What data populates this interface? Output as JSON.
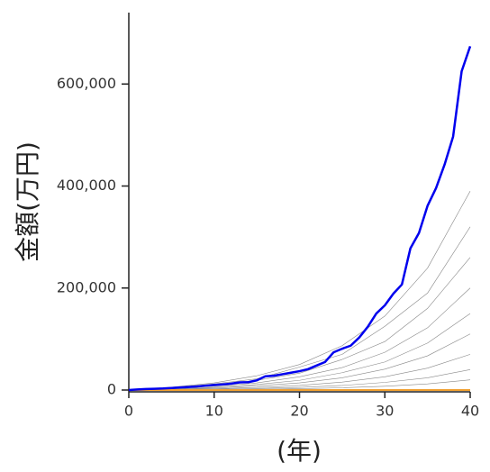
{
  "chart_data": {
    "type": "line",
    "y_label": "金額(万円)",
    "x_label": "(年)",
    "x": [
      0,
      1,
      2,
      3,
      4,
      5,
      6,
      7,
      8,
      9,
      10,
      11,
      12,
      13,
      14,
      15,
      16,
      17,
      18,
      19,
      20,
      21,
      22,
      23,
      24,
      25,
      26,
      27,
      28,
      29,
      30,
      31,
      32,
      33,
      34,
      35,
      36,
      37,
      38,
      39,
      40
    ],
    "xlim": [
      0,
      40
    ],
    "xticks": [
      0,
      10,
      20,
      30,
      40
    ],
    "ylim": [
      0,
      740000
    ],
    "yticks": [
      0,
      {
        "value": 200000,
        "label": "200,000"
      },
      {
        "value": 400000,
        "label": "400,000"
      },
      {
        "value": 600000,
        "label": "600,000"
      }
    ],
    "series": [
      {
        "color": "#888888",
        "x": [
          0,
          5,
          10,
          15,
          20,
          25,
          30,
          35,
          40
        ],
        "values": [
          0,
          5400,
          14000,
          28000,
          50000,
          87000,
          145000,
          239000,
          390000
        ]
      },
      {
        "color": "#888888",
        "x": [
          0,
          5,
          10,
          15,
          20,
          25,
          30,
          35,
          40
        ],
        "values": [
          0,
          4000,
          12000,
          22000,
          45000,
          70000,
          125000,
          190000,
          320000
        ]
      },
      {
        "color": "#888888",
        "x": [
          0,
          5,
          10,
          15,
          20,
          25,
          30,
          35,
          40
        ],
        "values": [
          0,
          3600,
          9000,
          19000,
          33000,
          60000,
          95000,
          160000,
          260000
        ]
      },
      {
        "color": "#888888",
        "x": [
          0,
          5,
          10,
          15,
          20,
          25,
          30,
          35,
          40
        ],
        "values": [
          0,
          2800,
          7500,
          14000,
          26000,
          44000,
          74000,
          122000,
          200000
        ]
      },
      {
        "color": "#888888",
        "x": [
          0,
          5,
          10,
          15,
          20,
          25,
          30,
          35,
          40
        ],
        "values": [
          0,
          2000,
          5400,
          11000,
          19000,
          34000,
          55000,
          92000,
          150000
        ]
      },
      {
        "color": "#888888",
        "x": [
          0,
          5,
          10,
          15,
          20,
          25,
          30,
          35,
          40
        ],
        "values": [
          0,
          1500,
          4000,
          8000,
          14000,
          24000,
          41000,
          67000,
          110000
        ]
      },
      {
        "color": "#888888",
        "x": [
          0,
          5,
          10,
          15,
          20,
          25,
          30,
          35,
          40
        ],
        "values": [
          0,
          1000,
          2500,
          5000,
          9000,
          15500,
          26000,
          43000,
          70000
        ]
      },
      {
        "color": "#888888",
        "x": [
          0,
          5,
          10,
          15,
          20,
          25,
          30,
          35,
          40
        ],
        "values": [
          0,
          600,
          1500,
          2900,
          5200,
          8900,
          15000,
          24000,
          40000
        ]
      },
      {
        "color": "#888888",
        "x": [
          0,
          5,
          10,
          15,
          20,
          25,
          30,
          35,
          40
        ],
        "values": [
          0,
          300,
          700,
          1400,
          2600,
          4400,
          7400,
          12000,
          20000
        ]
      },
      {
        "color": "#f0a030",
        "values": [
          0,
          0,
          0,
          0,
          0,
          0,
          0,
          0,
          0,
          0,
          0,
          0,
          0,
          0,
          0,
          0,
          0,
          0,
          0,
          0,
          0,
          0,
          0,
          0,
          0,
          0,
          0,
          0,
          0,
          0,
          0,
          0,
          0,
          0,
          0,
          0,
          0,
          0,
          0,
          0,
          0
        ]
      },
      {
        "color": "#0000ee",
        "values": [
          0,
          1000,
          2000,
          2500,
          3000,
          4000,
          5000,
          6000,
          7000,
          8500,
          10000,
          11000,
          12500,
          15000,
          15500,
          19000,
          27000,
          28000,
          31000,
          34000,
          37000,
          41000,
          48000,
          55000,
          74000,
          81000,
          87000,
          103000,
          124000,
          150000,
          166000,
          189000,
          207000,
          278000,
          308000,
          361000,
          396000,
          442000,
          497000,
          625000,
          674000
        ]
      }
    ]
  }
}
